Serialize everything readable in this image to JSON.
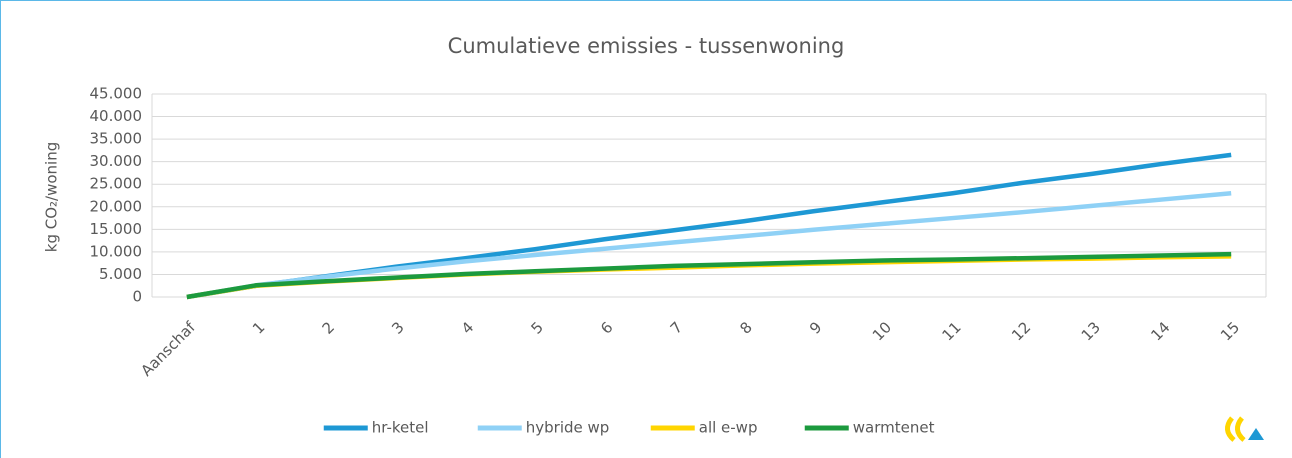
{
  "chart_data": {
    "type": "line",
    "title": "Cumulatieve emissies - tussenwoning",
    "y_label": "kg CO₂/woning",
    "categories": [
      "Aanschaf",
      "1",
      "2",
      "3",
      "4",
      "5",
      "6",
      "7",
      "8",
      "9",
      "10",
      "11",
      "12",
      "13",
      "14",
      "15"
    ],
    "series": [
      {
        "name": "hr-ketel",
        "color": "#1e98d4",
        "values": [
          0,
          2500,
          4600,
          6700,
          8600,
          10600,
          12800,
          14800,
          16800,
          19000,
          21000,
          23000,
          25300,
          27300,
          29500,
          31500
        ]
      },
      {
        "name": "hybride wp",
        "color": "#8fd1f6",
        "values": [
          0,
          2600,
          4500,
          6300,
          7900,
          9300,
          10700,
          12100,
          13500,
          14900,
          16200,
          17500,
          18800,
          20200,
          21600,
          23000
        ]
      },
      {
        "name": "all e-wp",
        "color": "#ffd500",
        "values": [
          0,
          2500,
          3400,
          4200,
          5000,
          5600,
          6100,
          6500,
          7000,
          7400,
          7700,
          8000,
          8300,
          8500,
          8800,
          9000
        ]
      },
      {
        "name": "warmtenet",
        "color": "#1c9a3e",
        "values": [
          0,
          2600,
          3500,
          4300,
          5100,
          5700,
          6300,
          6900,
          7300,
          7700,
          8100,
          8300,
          8600,
          8900,
          9200,
          9500
        ]
      }
    ],
    "ylim": [
      0,
      45000
    ],
    "yticks": [
      0,
      {
        "value": 5000,
        "label": "5.000"
      },
      {
        "value": 10000,
        "label": "10.000"
      },
      {
        "value": 15000,
        "label": "15.000"
      },
      {
        "value": 20000,
        "label": "20.000"
      },
      {
        "value": 25000,
        "label": "25.000"
      },
      {
        "value": 30000,
        "label": "30.000"
      },
      {
        "value": 35000,
        "label": "35.000"
      },
      {
        "value": 40000,
        "label": "40.000"
      },
      {
        "value": 45000,
        "label": "45.000"
      }
    ],
    "grid": true,
    "legend": "bottom"
  }
}
